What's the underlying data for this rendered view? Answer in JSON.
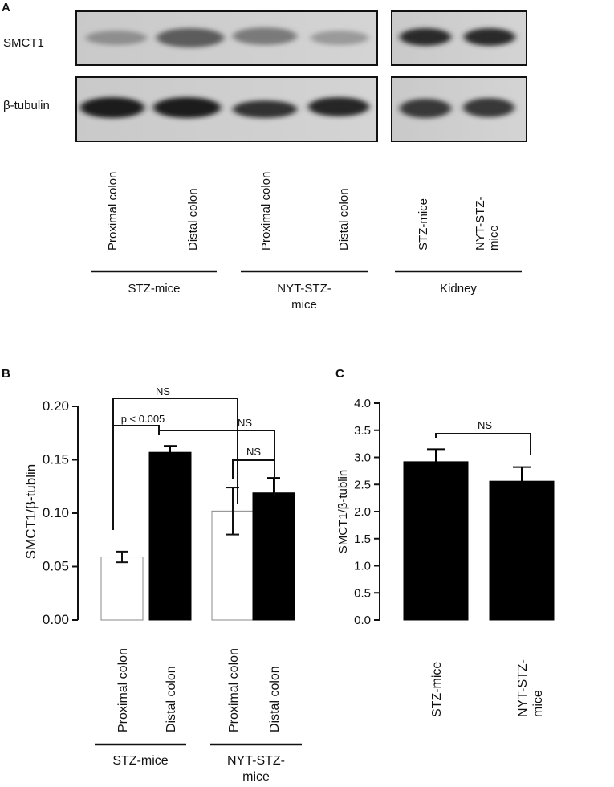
{
  "figure": {
    "panel_a": {
      "letter": "A",
      "row_labels": [
        "SMCT1",
        "β-tubulin"
      ],
      "lanes": [
        "Proximal colon",
        "Distal colon",
        "Proximal colon",
        "Distal colon",
        "STZ-mice",
        "NYT-STZ-mice"
      ],
      "lane_label_lines": [
        [
          "Proximal colon"
        ],
        [
          "Distal colon"
        ],
        [
          "Proximal colon"
        ],
        [
          "Distal colon"
        ],
        [
          "STZ-mice"
        ],
        [
          "NYT-STZ-",
          "mice"
        ]
      ],
      "group_labels": [
        [
          "STZ-mice"
        ],
        [
          "NYT-STZ-",
          "mice"
        ],
        [
          "Kidney"
        ]
      ]
    },
    "panel_b_letter": "B",
    "panel_c_letter": "C"
  },
  "chart_data": [
    {
      "type": "bar",
      "categories": [
        "Proximal colon",
        "Distal colon",
        "Proximal colon",
        "Distal colon"
      ],
      "values": [
        0.059,
        0.157,
        0.102,
        0.119
      ],
      "errors": [
        0.005,
        0.006,
        0.022,
        0.014
      ],
      "bar_fills": [
        "#ffffff",
        "#000000",
        "#ffffff",
        "#000000"
      ],
      "groups": [
        [
          "STZ-mice"
        ],
        [
          "NYT-STZ-",
          "mice"
        ]
      ],
      "ylabel": "SMCT1/β-tublin",
      "ylim": [
        0,
        0.2
      ],
      "yticks": [
        "0.00",
        "0.05",
        "0.10",
        "0.15",
        "0.20"
      ],
      "annotations": [
        "p < 0.005",
        "NS",
        "NS",
        "NS"
      ],
      "grid": false
    },
    {
      "type": "bar",
      "categories": [
        "STZ-mice",
        "NYT-STZ-mice"
      ],
      "category_label_lines": [
        [
          "STZ-mice"
        ],
        [
          "NYT-STZ-",
          "mice"
        ]
      ],
      "values": [
        2.92,
        2.56
      ],
      "errors": [
        0.23,
        0.26
      ],
      "bar_fills": [
        "#000000",
        "#000000"
      ],
      "ylabel": "SMCT1/β-tublin",
      "ylim": [
        0,
        4.0
      ],
      "yticks": [
        "0.0",
        "0.5",
        "1.0",
        "1.5",
        "2.0",
        "2.5",
        "3.0",
        "3.5",
        "4.0"
      ],
      "annotations": [
        "NS"
      ],
      "grid": false
    }
  ]
}
